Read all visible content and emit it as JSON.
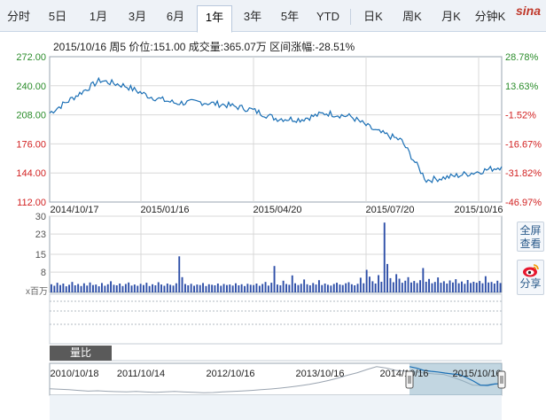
{
  "tabs": [
    {
      "label": "分时",
      "active": false
    },
    {
      "label": "5日",
      "active": false
    },
    {
      "label": "1月",
      "active": false
    },
    {
      "label": "3月",
      "active": false
    },
    {
      "label": "6月",
      "active": false
    },
    {
      "label": "1年",
      "active": true
    },
    {
      "label": "3年",
      "active": false
    },
    {
      "label": "5年",
      "active": false
    },
    {
      "label": "YTD",
      "active": false
    },
    {
      "label": "日K",
      "active": false
    },
    {
      "label": "周K",
      "active": false
    },
    {
      "label": "月K",
      "active": false
    },
    {
      "label": "分钟K",
      "active": false
    }
  ],
  "brand": "sina",
  "info_line": "2015/10/16 周5  价位:151.00  成交量:365.07万  区间涨幅:-28.51%",
  "side": {
    "fullscreen": "全屏\n查看",
    "share": "分享"
  },
  "volume_label": "量比",
  "colors": {
    "line": "#1a6fb5",
    "up": "#2a8c2a",
    "down": "#d22222",
    "volume_bar": "#2e4fa8",
    "grid": "#d8d8d8",
    "range_fill": "#8fb5c9"
  },
  "chart_data": [
    {
      "type": "line",
      "title": "",
      "y_ticks": [
        "272.00",
        "240.00",
        "208.00",
        "176.00",
        "144.00",
        "112.00"
      ],
      "y_pct_ticks": [
        "28.78%",
        "13.63%",
        "-1.52%",
        "-16.67%",
        "-31.82%",
        "-46.97%"
      ],
      "ylim": [
        112,
        272
      ],
      "x_ticks": [
        "2014/10/17",
        "2015/01/16",
        "2015/04/20",
        "2015/07/20",
        "2015/10/16"
      ],
      "x": [
        "2014/10/17",
        "2014/11/07",
        "2014/11/28",
        "2014/12/19",
        "2015/01/16",
        "2015/02/06",
        "2015/03/06",
        "2015/03/27",
        "2015/04/20",
        "2015/05/08",
        "2015/05/29",
        "2015/06/19",
        "2015/07/10",
        "2015/07/20",
        "2015/08/07",
        "2015/08/28",
        "2015/09/18",
        "2015/10/09",
        "2015/10/16"
      ],
      "values": [
        210,
        228,
        246,
        240,
        228,
        221,
        222,
        219,
        214,
        204,
        203,
        210,
        206,
        190,
        180,
        136,
        140,
        145,
        151
      ]
    },
    {
      "type": "bar",
      "title": "",
      "y_ticks": [
        "30",
        "23",
        "15",
        "8"
      ],
      "y_unit": "x百万",
      "ylim": [
        0,
        30
      ],
      "values": [
        3.2,
        2.6,
        3.8,
        2.9,
        3.5,
        2.4,
        3.0,
        4.1,
        2.8,
        3.3,
        2.5,
        3.6,
        2.7,
        3.9,
        2.9,
        3.1,
        2.4,
        3.7,
        2.6,
        3.2,
        4.4,
        3.0,
        2.8,
        3.5,
        2.5,
        3.3,
        3.9,
        2.7,
        3.1,
        2.6,
        3.4,
        2.9,
        3.8,
        2.5,
        3.2,
        2.8,
        4.0,
        3.1,
        2.6,
        3.5,
        3.0,
        2.7,
        3.6,
        14.2,
        6.0,
        3.3,
        2.8,
        3.4,
        2.6,
        3.1,
        2.9,
        3.7,
        2.5,
        3.2,
        3.0,
        2.8,
        3.5,
        2.6,
        3.3,
        2.9,
        3.1,
        2.7,
        3.6,
        2.8,
        3.2,
        2.5,
        3.4,
        3.0,
        2.9,
        3.5,
        2.6,
        3.3,
        4.1,
        2.7,
        3.8,
        10.4,
        3.1,
        2.8,
        4.6,
        3.3,
        3.0,
        6.7,
        3.6,
        2.9,
        3.4,
        5.1,
        3.2,
        2.8,
        3.7,
        3.1,
        4.8,
        2.9,
        3.5,
        3.0,
        2.7,
        3.3,
        3.8,
        3.1,
        2.9,
        3.6,
        4.0,
        3.2,
        2.8,
        3.4,
        5.8,
        3.6,
        8.9,
        6.2,
        4.4,
        3.5,
        6.8,
        4.2,
        27.5,
        11.2,
        5.6,
        4.0,
        7.2,
        5.4,
        3.8,
        4.6,
        6.0,
        3.9,
        4.5,
        3.7,
        4.8,
        9.6,
        4.2,
        5.3,
        3.6,
        4.1,
        5.9,
        3.8,
        4.4,
        3.5,
        4.7,
        3.9,
        5.2,
        3.6,
        4.3,
        3.4,
        4.9,
        3.7,
        4.2,
        3.8,
        4.5,
        3.6,
        6.4,
        3.9,
        4.1,
        3.5,
        4.6,
        3.7
      ]
    },
    {
      "type": "area",
      "title": "",
      "x_ticks": [
        "2010/10/18",
        "2011/10/14",
        "2012/10/16",
        "2013/10/16",
        "2014/10/16",
        "2015/10/16"
      ],
      "values": [
        121,
        119,
        116,
        112,
        108,
        110,
        107,
        105,
        104,
        106,
        103,
        101,
        104,
        106,
        103,
        101,
        99,
        100,
        104,
        106,
        109,
        112,
        116,
        120,
        125,
        131,
        138,
        146,
        156,
        168,
        182,
        198,
        212,
        230,
        246,
        238,
        225,
        220,
        216,
        210,
        205,
        202,
        185,
        165,
        142,
        140,
        148,
        151
      ]
    }
  ]
}
